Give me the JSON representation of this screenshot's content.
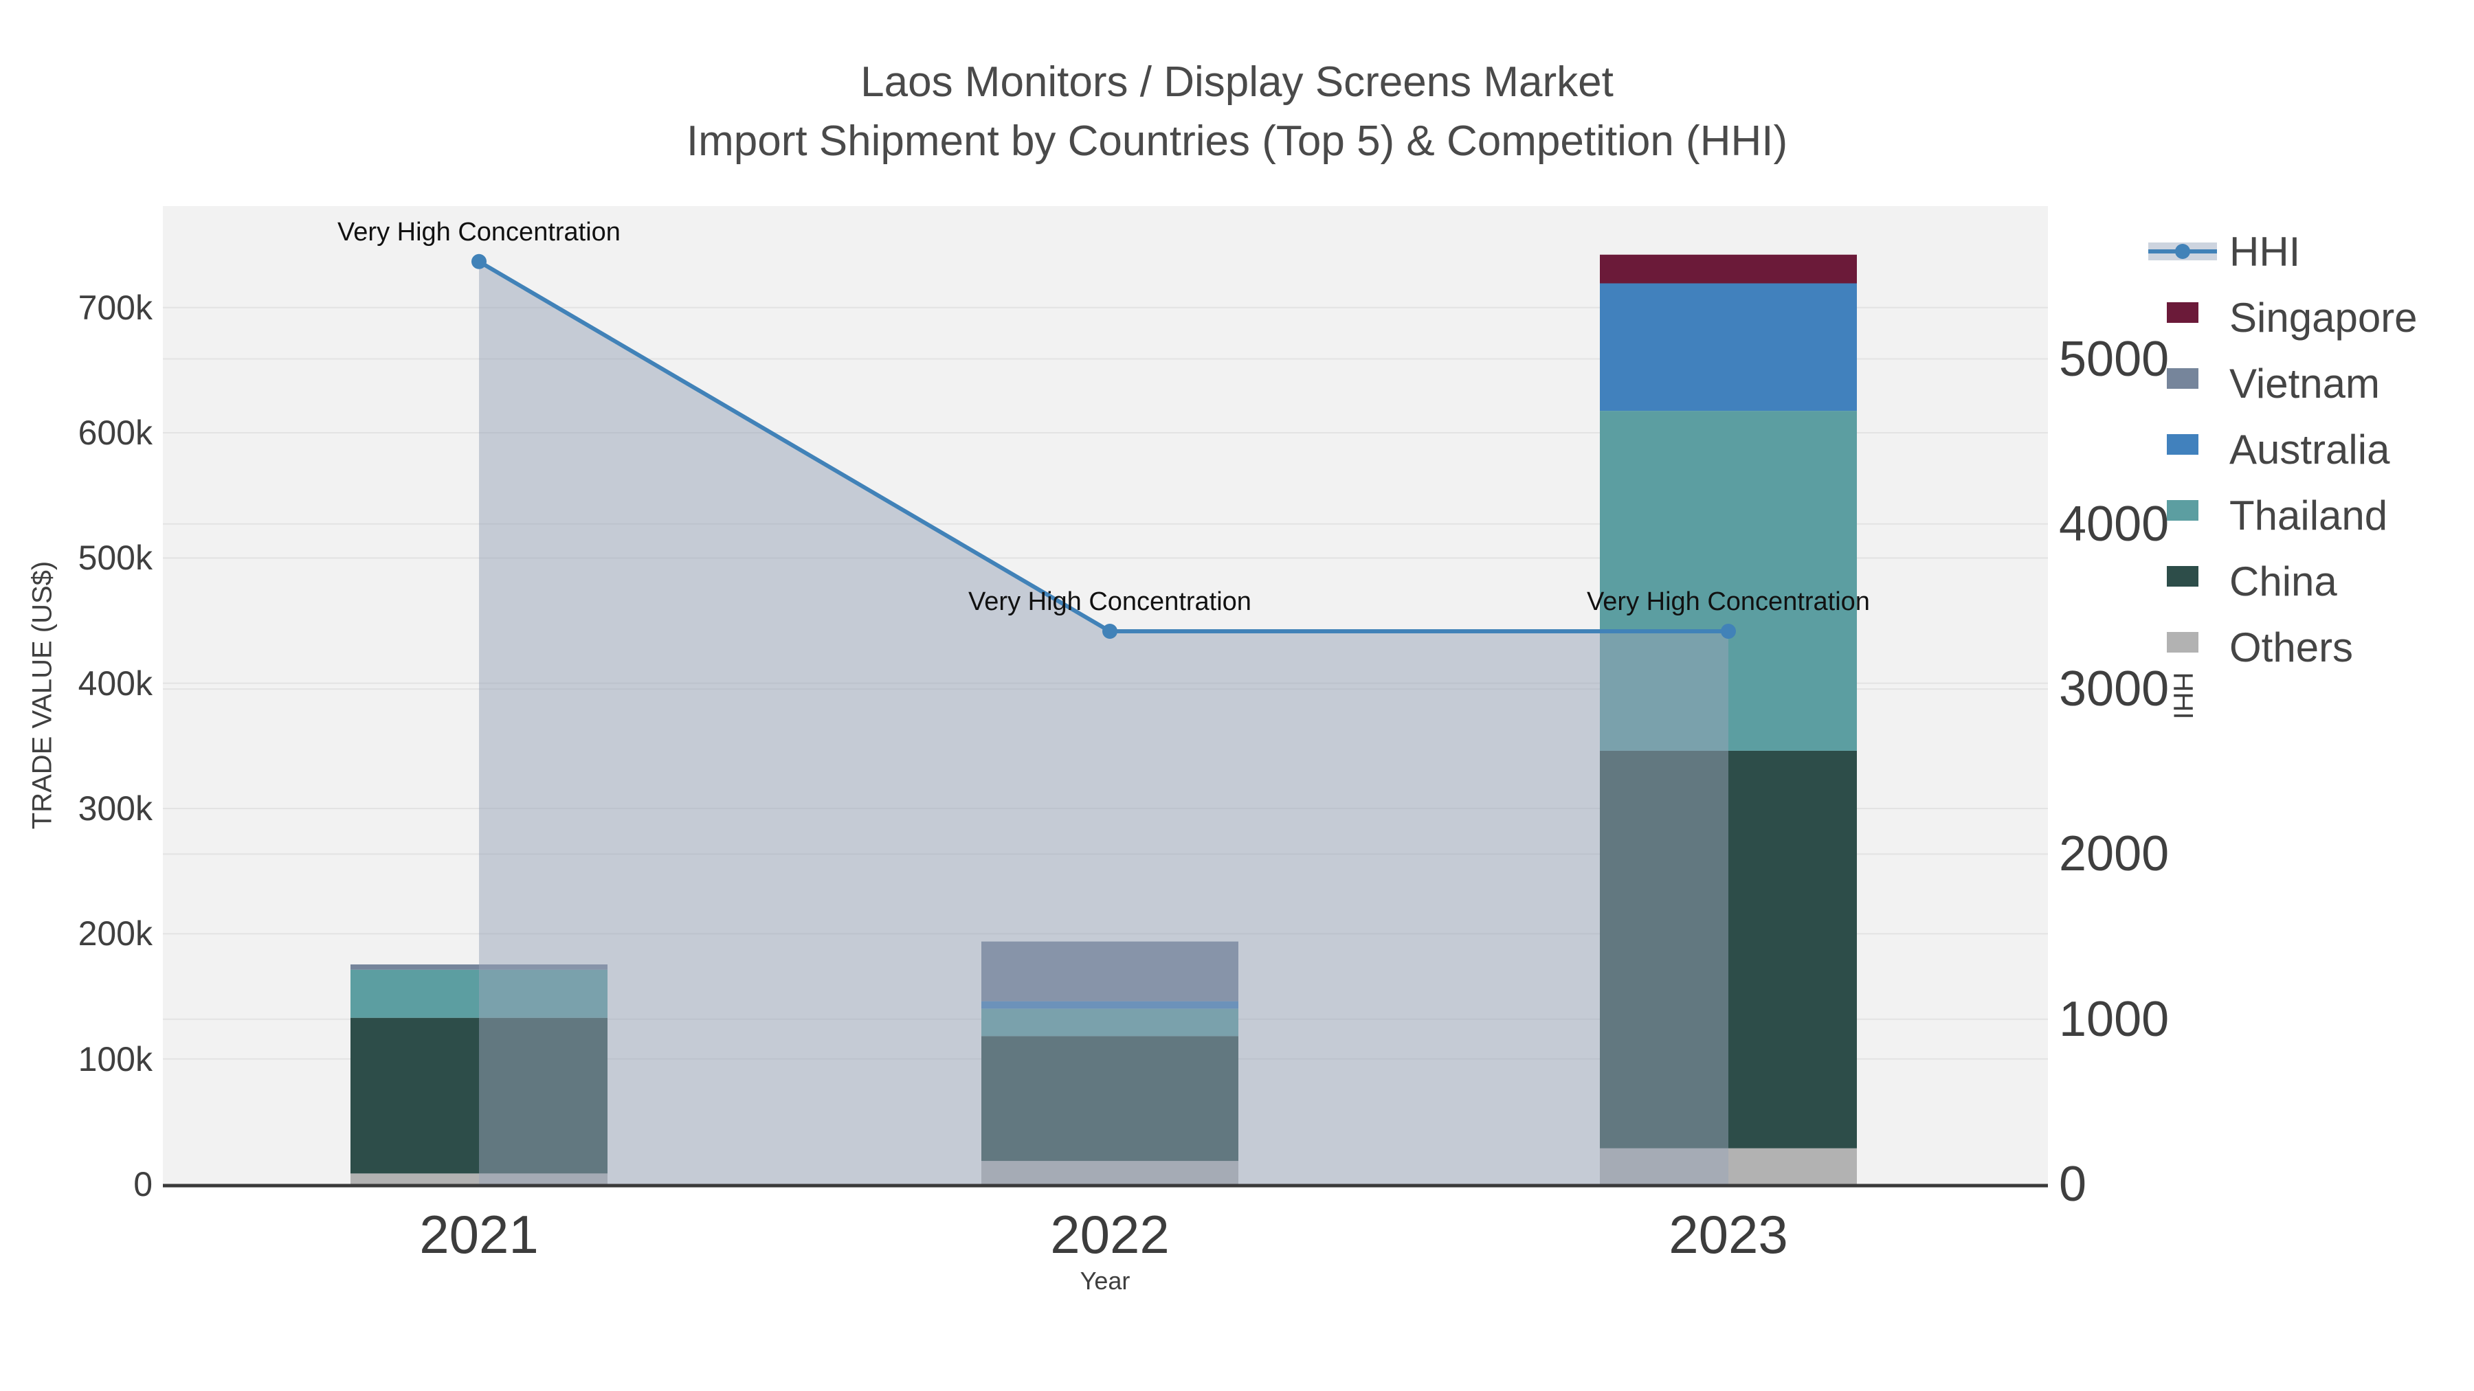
{
  "title": {
    "line1": "Laos Monitors / Display Screens Market",
    "line2": "Import Shipment by Countries (Top 5) & Competition (HHI)"
  },
  "axes": {
    "x_title": "Year",
    "y_left_title": "TRADE VALUE (US$)",
    "y_right_title": "HHI"
  },
  "chart_data": {
    "type": "combo: stacked bar (trade value, left axis) + line with area fill (HHI, right axis)",
    "categories": [
      "2021",
      "2022",
      "2023"
    ],
    "bar_unit": "US$",
    "series": [
      {
        "name": "Others",
        "color": "#b2b2b2",
        "values": [
          8600,
          18600,
          28700
        ]
      },
      {
        "name": "China",
        "color": "#2d4d49",
        "values": [
          124300,
          99700,
          317400
        ]
      },
      {
        "name": "Thailand",
        "color": "#5c9ea1",
        "values": [
          38400,
          21900,
          271400
        ]
      },
      {
        "name": "Australia",
        "color": "#4181bd",
        "values": [
          0,
          5900,
          101800
        ]
      },
      {
        "name": "Vietnam",
        "color": "#76859b",
        "values": [
          4200,
          47700,
          0
        ]
      },
      {
        "name": "Singapore",
        "color": "#6b1a39",
        "values": [
          0,
          0,
          22900
        ]
      }
    ],
    "bar_totals": [
      175500,
      193800,
      742200
    ],
    "line": {
      "name": "HHI",
      "color": "#4182b8",
      "area_fill": "rgba(152,163,184,0.5)",
      "values": [
        5590,
        3350,
        3350
      ]
    },
    "annotations": [
      {
        "text": "Very High Concentration",
        "category": "2021"
      },
      {
        "text": "Very High Concentration",
        "category": "2022"
      },
      {
        "text": "Very High Concentration",
        "category": "2023"
      }
    ],
    "y_left": {
      "max": 781000,
      "ticks": [
        0,
        100000,
        200000,
        300000,
        400000,
        500000,
        600000,
        700000
      ],
      "tick_labels": [
        "0",
        "100k",
        "200k",
        "300k",
        "400k",
        "500k",
        "600k",
        "700k"
      ]
    },
    "y_right": {
      "max": 5926,
      "ticks": [
        0,
        1000,
        2000,
        3000,
        4000,
        5000
      ],
      "tick_labels": [
        "0",
        "1000",
        "2000",
        "3000",
        "4000",
        "5000"
      ]
    },
    "legend": [
      {
        "label": "HHI",
        "type": "line",
        "color": "#4182b8"
      },
      {
        "label": "Singapore",
        "type": "swatch",
        "color": "#6b1a39"
      },
      {
        "label": "Vietnam",
        "type": "swatch",
        "color": "#76859b"
      },
      {
        "label": "Australia",
        "type": "swatch",
        "color": "#4181bd"
      },
      {
        "label": "Thailand",
        "type": "swatch",
        "color": "#5c9ea1"
      },
      {
        "label": "China",
        "type": "swatch",
        "color": "#2d4d49"
      },
      {
        "label": "Others",
        "type": "swatch",
        "color": "#b2b2b2"
      }
    ],
    "plot_bg": "#f2f2f2",
    "grid_color": "#e3e3e3",
    "axis_line_color": "#3a3a3a",
    "legend_position": "top-right outside plot",
    "grid": true
  }
}
